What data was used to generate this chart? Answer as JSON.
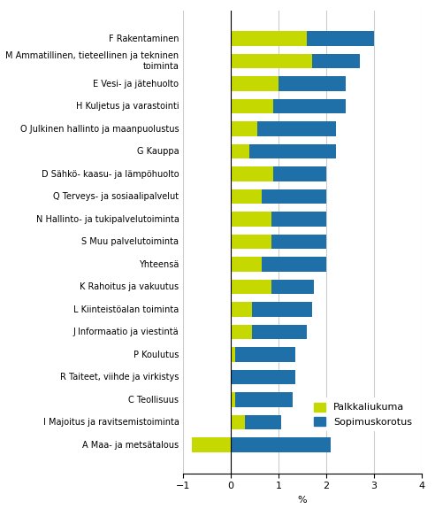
{
  "categories": [
    "F Rakentaminen",
    "M Ammatillinen, tieteellinen ja tekninen\ntoiminta",
    "E Vesi- ja jätehuolto",
    "H Kuljetus ja varastointi",
    "O Julkinen hallinto ja maanpuolustus",
    "G Kauppa",
    "D Sähkö- kaasu- ja lämpöhuolto",
    "Q Terveys- ja sosiaalipalvelut",
    "N Hallinto- ja tukipalvelutoiminta",
    "S Muu palvelutoiminta",
    "Yhteensä",
    "K Rahoitus ja vakuutus",
    "L Kiinteistöalan toiminta",
    "J Informaatio ja viestintä",
    "P Koulutus",
    "R Taiteet, viihde ja virkistys",
    "C Teollisuus",
    "I Majoitus ja ravitsemistoiminta",
    "A Maa- ja metsätalous"
  ],
  "palkkaliukuma": [
    1.6,
    1.7,
    1.0,
    0.9,
    0.55,
    0.4,
    0.9,
    0.65,
    0.85,
    0.85,
    0.65,
    0.85,
    0.45,
    0.45,
    0.1,
    0.0,
    0.1,
    0.3,
    -0.8
  ],
  "sopimuskorotus": [
    1.4,
    1.0,
    1.4,
    1.5,
    1.65,
    1.8,
    1.1,
    1.35,
    1.15,
    1.15,
    1.35,
    0.9,
    1.25,
    1.15,
    1.25,
    1.35,
    1.2,
    0.75,
    2.1
  ],
  "color_palkkaliukuma": "#c5d900",
  "color_sopimuskorotus": "#1f6fa8",
  "xlim": [
    -1,
    4
  ],
  "xticks": [
    -1,
    0,
    1,
    2,
    3,
    4
  ],
  "xlabel": "%",
  "legend_palkkaliukuma": "Palkkaliukuma",
  "legend_sopimuskorotus": "Sopimuskorotus",
  "grid_color": "#cccccc",
  "figsize": [
    4.92,
    5.75
  ],
  "dpi": 100,
  "label_fontsize": 7.0,
  "tick_fontsize": 8.0,
  "bar_height": 0.65
}
